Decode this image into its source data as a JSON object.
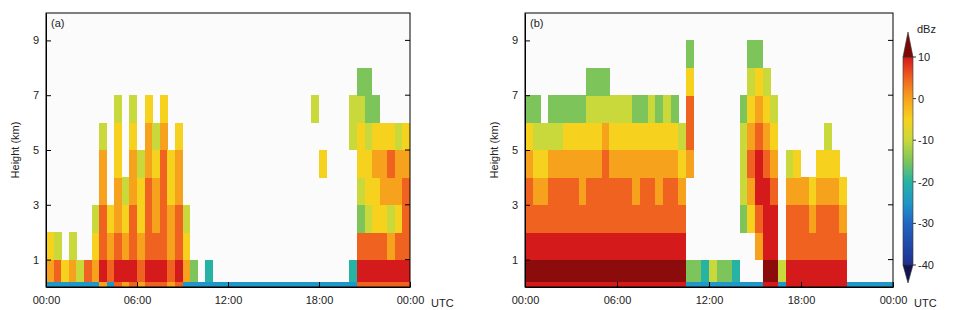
{
  "chart_data": [
    {
      "type": "heatmap",
      "title": "(a)",
      "ylabel": "Height (km)",
      "xlabel": "UTC",
      "xlim": [
        0,
        24
      ],
      "xticks": [
        {
          "value": 0,
          "label": "00:00"
        },
        {
          "value": 6,
          "label": "06:00"
        },
        {
          "value": 12,
          "label": "12:00"
        },
        {
          "value": 18,
          "label": "18:00"
        },
        {
          "value": 24,
          "label": "00:00"
        }
      ],
      "ylim": [
        0,
        10
      ],
      "yticks": [
        1,
        3,
        5,
        7,
        9
      ],
      "grid": false,
      "x": [
        0,
        0.5,
        1,
        1.5,
        2,
        2.5,
        3,
        3.5,
        4,
        4.5,
        5,
        5.5,
        6,
        6.5,
        7,
        7.5,
        8,
        8.5,
        9,
        9.5,
        10,
        10.5,
        11,
        11.5,
        12,
        12.5,
        13,
        13.5,
        14,
        14.5,
        15,
        15.5,
        16,
        16.5,
        17,
        17.5,
        18,
        18.5,
        19,
        19.5,
        20,
        20.5,
        21,
        21.5,
        22,
        22.5,
        23,
        23.5,
        24
      ],
      "y": [
        0,
        0.2,
        1,
        2,
        3,
        4,
        5,
        6,
        7,
        8,
        9,
        10
      ],
      "z": [
        [
          -25,
          -25,
          -25,
          -25,
          -25,
          -25,
          -25,
          0,
          -25,
          5,
          0,
          5,
          0,
          5,
          5,
          5,
          0,
          5,
          -25,
          -25,
          -25,
          -25,
          -25,
          -25,
          -25,
          -25,
          -25,
          -25,
          -25,
          -25,
          -25,
          -25,
          -25,
          -25,
          -25,
          -25,
          -25,
          -25,
          -25,
          -25,
          -25,
          5,
          5,
          5,
          5,
          5,
          5,
          5
        ],
        [
          0,
          5,
          -5,
          0,
          -10,
          5,
          0,
          10,
          5,
          10,
          10,
          10,
          5,
          10,
          10,
          10,
          5,
          10,
          0,
          -15,
          null,
          -20,
          null,
          null,
          null,
          null,
          null,
          null,
          null,
          null,
          null,
          null,
          null,
          null,
          null,
          null,
          null,
          null,
          null,
          null,
          -20,
          10,
          10,
          10,
          10,
          10,
          10,
          10
        ],
        [
          -5,
          -10,
          null,
          -10,
          null,
          null,
          -5,
          5,
          0,
          5,
          0,
          5,
          0,
          5,
          5,
          5,
          0,
          5,
          -5,
          null,
          null,
          null,
          null,
          null,
          null,
          null,
          null,
          null,
          null,
          null,
          null,
          null,
          null,
          null,
          null,
          null,
          null,
          null,
          null,
          null,
          null,
          5,
          5,
          5,
          5,
          0,
          5,
          5
        ],
        [
          null,
          null,
          null,
          null,
          null,
          null,
          -10,
          5,
          -5,
          0,
          -5,
          5,
          -5,
          5,
          0,
          5,
          0,
          5,
          -10,
          null,
          null,
          null,
          null,
          null,
          null,
          null,
          null,
          null,
          null,
          null,
          null,
          null,
          null,
          null,
          null,
          null,
          null,
          null,
          null,
          null,
          null,
          -15,
          -10,
          -5,
          -5,
          -10,
          -5,
          5
        ],
        [
          null,
          null,
          null,
          null,
          null,
          null,
          null,
          0,
          null,
          0,
          -10,
          0,
          -5,
          5,
          0,
          5,
          -5,
          0,
          null,
          null,
          null,
          null,
          null,
          null,
          null,
          null,
          null,
          null,
          null,
          null,
          null,
          null,
          null,
          null,
          null,
          null,
          null,
          null,
          null,
          null,
          null,
          -10,
          -5,
          -5,
          0,
          0,
          0,
          5
        ],
        [
          null,
          null,
          null,
          null,
          null,
          null,
          null,
          0,
          null,
          -5,
          null,
          0,
          -10,
          0,
          -5,
          5,
          -5,
          0,
          null,
          null,
          null,
          null,
          null,
          null,
          null,
          null,
          null,
          null,
          null,
          null,
          null,
          null,
          null,
          null,
          null,
          null,
          -5,
          null,
          null,
          null,
          null,
          -5,
          -5,
          0,
          0,
          5,
          0,
          0
        ],
        [
          null,
          null,
          null,
          null,
          null,
          null,
          null,
          -10,
          null,
          -5,
          null,
          -5,
          null,
          0,
          -10,
          0,
          null,
          -5,
          null,
          null,
          null,
          null,
          null,
          null,
          null,
          null,
          null,
          null,
          null,
          null,
          null,
          null,
          null,
          null,
          null,
          null,
          null,
          null,
          null,
          null,
          -10,
          -5,
          -10,
          -5,
          -5,
          -5,
          -10,
          -5
        ],
        [
          null,
          null,
          null,
          null,
          null,
          null,
          null,
          null,
          null,
          -10,
          null,
          -10,
          null,
          -5,
          null,
          -5,
          null,
          null,
          null,
          null,
          null,
          null,
          null,
          null,
          null,
          null,
          null,
          null,
          null,
          null,
          null,
          null,
          null,
          null,
          null,
          -10,
          null,
          null,
          null,
          null,
          -10,
          -10,
          -15,
          -15,
          null,
          null,
          null,
          null
        ],
        [
          null,
          null,
          null,
          null,
          null,
          null,
          null,
          null,
          null,
          null,
          null,
          null,
          null,
          null,
          null,
          null,
          null,
          null,
          null,
          null,
          null,
          null,
          null,
          null,
          null,
          null,
          null,
          null,
          null,
          null,
          null,
          null,
          null,
          null,
          null,
          null,
          null,
          null,
          null,
          null,
          null,
          -15,
          -15,
          null,
          null,
          null,
          null,
          null
        ],
        [
          null,
          null,
          null,
          null,
          null,
          null,
          null,
          null,
          null,
          null,
          null,
          null,
          null,
          null,
          null,
          null,
          null,
          null,
          null,
          null,
          null,
          null,
          null,
          null,
          null,
          null,
          null,
          null,
          null,
          null,
          null,
          null,
          null,
          null,
          null,
          null,
          null,
          null,
          null,
          null,
          null,
          null,
          null,
          null,
          null,
          null,
          null,
          null
        ],
        [
          null,
          null,
          null,
          null,
          null,
          null,
          null,
          null,
          null,
          null,
          null,
          null,
          null,
          null,
          null,
          null,
          null,
          null,
          null,
          null,
          null,
          null,
          null,
          null,
          null,
          null,
          null,
          null,
          null,
          null,
          null,
          null,
          null,
          null,
          null,
          null,
          null,
          null,
          null,
          null,
          null,
          null,
          null,
          null,
          null,
          null,
          null,
          null
        ]
      ]
    },
    {
      "type": "heatmap",
      "title": "(b)",
      "ylabel": "Height (km)",
      "xlabel": "UTC",
      "xlim": [
        0,
        24
      ],
      "xticks": [
        {
          "value": 0,
          "label": "00:00"
        },
        {
          "value": 6,
          "label": "06:00"
        },
        {
          "value": 12,
          "label": "12:00"
        },
        {
          "value": 18,
          "label": "18:00"
        },
        {
          "value": 24,
          "label": "00:00"
        }
      ],
      "ylim": [
        0,
        10
      ],
      "yticks": [
        1,
        3,
        5,
        7,
        9
      ],
      "grid": false,
      "x": [
        0,
        0.5,
        1,
        1.5,
        2,
        2.5,
        3,
        3.5,
        4,
        4.5,
        5,
        5.5,
        6,
        6.5,
        7,
        7.5,
        8,
        8.5,
        9,
        9.5,
        10,
        10.5,
        11,
        11.5,
        12,
        12.5,
        13,
        13.5,
        14,
        14.5,
        15,
        15.5,
        16,
        16.5,
        17,
        17.5,
        18,
        18.5,
        19,
        19.5,
        20,
        20.5,
        21,
        21.5,
        22,
        22.5,
        23,
        23.5,
        24
      ],
      "y": [
        0,
        0.2,
        1,
        2,
        3,
        4,
        5,
        6,
        7,
        8,
        9,
        10
      ],
      "z": [
        [
          10,
          10,
          10,
          10,
          10,
          10,
          10,
          10,
          10,
          10,
          10,
          10,
          10,
          10,
          10,
          10,
          10,
          10,
          10,
          10,
          10,
          -25,
          -25,
          -25,
          -25,
          -25,
          -25,
          -25,
          -25,
          -25,
          -25,
          10,
          10,
          -25,
          10,
          10,
          10,
          10,
          10,
          10,
          10,
          10,
          -25,
          -25,
          -25,
          -25,
          -25,
          -25
        ],
        [
          15,
          15,
          15,
          15,
          15,
          15,
          15,
          15,
          15,
          15,
          15,
          15,
          15,
          15,
          15,
          15,
          15,
          15,
          15,
          15,
          15,
          -15,
          -15,
          -20,
          -10,
          -15,
          -15,
          -20,
          null,
          null,
          null,
          15,
          15,
          -10,
          10,
          10,
          10,
          10,
          10,
          10,
          10,
          10,
          null,
          null,
          null,
          null,
          null,
          null
        ],
        [
          10,
          10,
          10,
          10,
          10,
          10,
          10,
          10,
          10,
          10,
          10,
          10,
          10,
          10,
          10,
          10,
          10,
          10,
          10,
          10,
          10,
          null,
          null,
          null,
          null,
          null,
          null,
          null,
          null,
          null,
          0,
          10,
          10,
          null,
          5,
          5,
          5,
          5,
          5,
          5,
          5,
          5,
          null,
          null,
          null,
          null,
          null,
          null
        ],
        [
          5,
          5,
          5,
          5,
          5,
          5,
          5,
          5,
          5,
          5,
          5,
          5,
          5,
          5,
          5,
          5,
          5,
          5,
          5,
          5,
          5,
          null,
          null,
          null,
          null,
          null,
          null,
          null,
          -15,
          -5,
          5,
          10,
          10,
          null,
          5,
          5,
          5,
          0,
          5,
          5,
          5,
          0,
          null,
          null,
          null,
          null,
          null,
          null
        ],
        [
          5,
          0,
          0,
          5,
          5,
          5,
          5,
          0,
          5,
          5,
          5,
          5,
          5,
          5,
          0,
          5,
          5,
          0,
          5,
          5,
          0,
          null,
          null,
          null,
          null,
          null,
          null,
          null,
          -10,
          0,
          10,
          10,
          5,
          null,
          0,
          0,
          0,
          -5,
          0,
          0,
          0,
          -5,
          null,
          null,
          null,
          null,
          null,
          null
        ],
        [
          0,
          -5,
          -5,
          0,
          0,
          0,
          0,
          0,
          0,
          0,
          5,
          0,
          0,
          0,
          0,
          0,
          0,
          0,
          0,
          0,
          -5,
          0,
          null,
          null,
          null,
          null,
          null,
          null,
          -10,
          5,
          10,
          5,
          0,
          null,
          -10,
          -5,
          null,
          null,
          -5,
          -5,
          -5,
          null,
          null,
          null,
          null,
          null,
          null,
          null
        ],
        [
          -5,
          -10,
          -10,
          -10,
          -10,
          -5,
          -5,
          -5,
          -5,
          -5,
          0,
          -5,
          -5,
          -5,
          -5,
          -5,
          -5,
          -5,
          -5,
          -5,
          -10,
          5,
          null,
          null,
          null,
          null,
          null,
          null,
          -10,
          0,
          5,
          0,
          -5,
          null,
          null,
          null,
          null,
          null,
          null,
          -10,
          null,
          null,
          null,
          null,
          null,
          null,
          null,
          null
        ],
        [
          -15,
          -15,
          null,
          -15,
          -15,
          -15,
          -15,
          -15,
          -10,
          -10,
          -10,
          -10,
          -10,
          -10,
          -15,
          -15,
          -10,
          -15,
          -10,
          -15,
          null,
          5,
          null,
          null,
          null,
          null,
          null,
          null,
          -15,
          -5,
          0,
          -5,
          -10,
          null,
          null,
          null,
          null,
          null,
          null,
          null,
          null,
          null,
          null,
          null,
          null,
          null,
          null,
          null
        ],
        [
          null,
          null,
          null,
          null,
          null,
          null,
          null,
          null,
          -15,
          -15,
          -15,
          null,
          null,
          null,
          null,
          null,
          null,
          null,
          null,
          null,
          null,
          -5,
          null,
          null,
          null,
          null,
          null,
          null,
          null,
          -10,
          -5,
          -10,
          null,
          null,
          null,
          null,
          null,
          null,
          null,
          null,
          null,
          null,
          null,
          null,
          null,
          null,
          null,
          null
        ],
        [
          null,
          null,
          null,
          null,
          null,
          null,
          null,
          null,
          null,
          null,
          null,
          null,
          null,
          null,
          null,
          null,
          null,
          null,
          null,
          null,
          null,
          -15,
          null,
          null,
          null,
          null,
          null,
          null,
          null,
          -15,
          -15,
          null,
          null,
          null,
          null,
          null,
          null,
          null,
          null,
          null,
          null,
          null,
          null,
          null,
          null,
          null,
          null,
          null
        ],
        [
          null,
          null,
          null,
          null,
          null,
          null,
          null,
          null,
          null,
          null,
          null,
          null,
          null,
          null,
          null,
          null,
          null,
          null,
          null,
          null,
          null,
          null,
          null,
          null,
          null,
          null,
          null,
          null,
          null,
          null,
          null,
          null,
          null,
          null,
          null,
          null,
          null,
          null,
          null,
          null,
          null,
          null,
          null,
          null,
          null,
          null,
          null,
          null
        ]
      ],
      "colorbar": {
        "label": "dBz",
        "range": [
          -40,
          10
        ],
        "ticks": [
          10,
          0,
          -10,
          -20,
          -30,
          -40
        ]
      }
    }
  ]
}
